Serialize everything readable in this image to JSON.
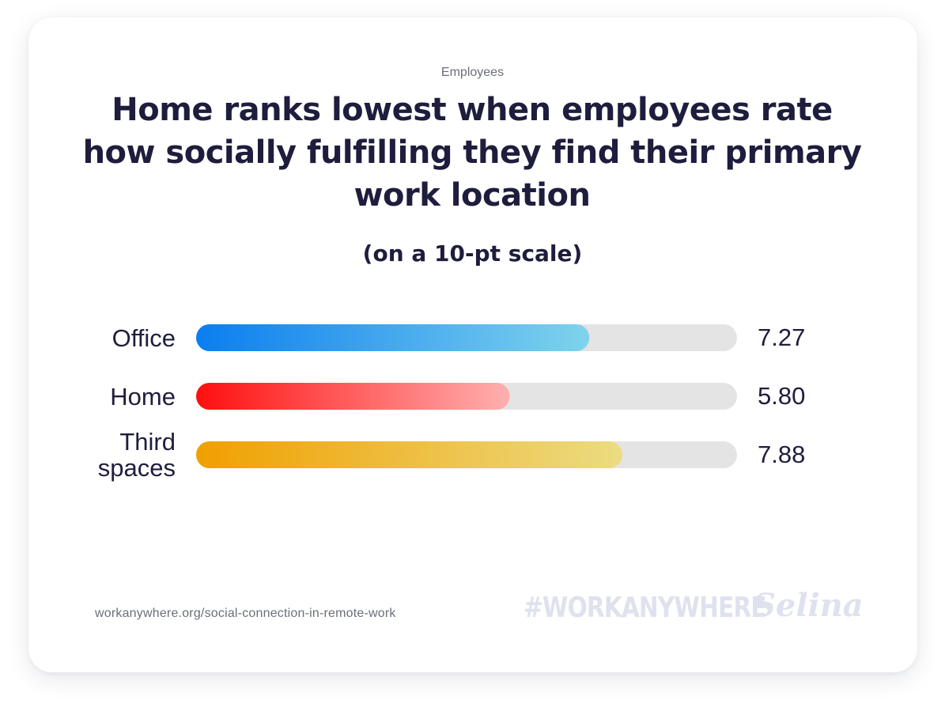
{
  "eyebrow": "Employees",
  "footer": {
    "source": "workanywhere.org/social-connection-in-remote-work",
    "hashtag": "#WORKANYWHERE",
    "brand": "Selina"
  },
  "colors": {
    "text": "#1f1d3d",
    "track": "#e4e4e4",
    "office_start": "#0a7ef0",
    "office_end": "#7fd3ec",
    "home_start": "#ff0f0f",
    "home_end": "#ffb0b0",
    "third_start": "#f0a000",
    "third_end": "#ecdc82"
  },
  "chart_data": {
    "type": "bar",
    "orientation": "horizontal",
    "title": "Home ranks lowest when employees rate how socially fulfilling they find their primary work location",
    "subtitle": "(on a 10-pt scale)",
    "categories": [
      "Office",
      "Home",
      "Third spaces"
    ],
    "values": [
      7.27,
      5.8,
      7.88
    ],
    "value_labels": [
      "7.27",
      "5.80",
      "7.88"
    ],
    "xlim": [
      0,
      10
    ],
    "grid": false,
    "legend": "none"
  }
}
